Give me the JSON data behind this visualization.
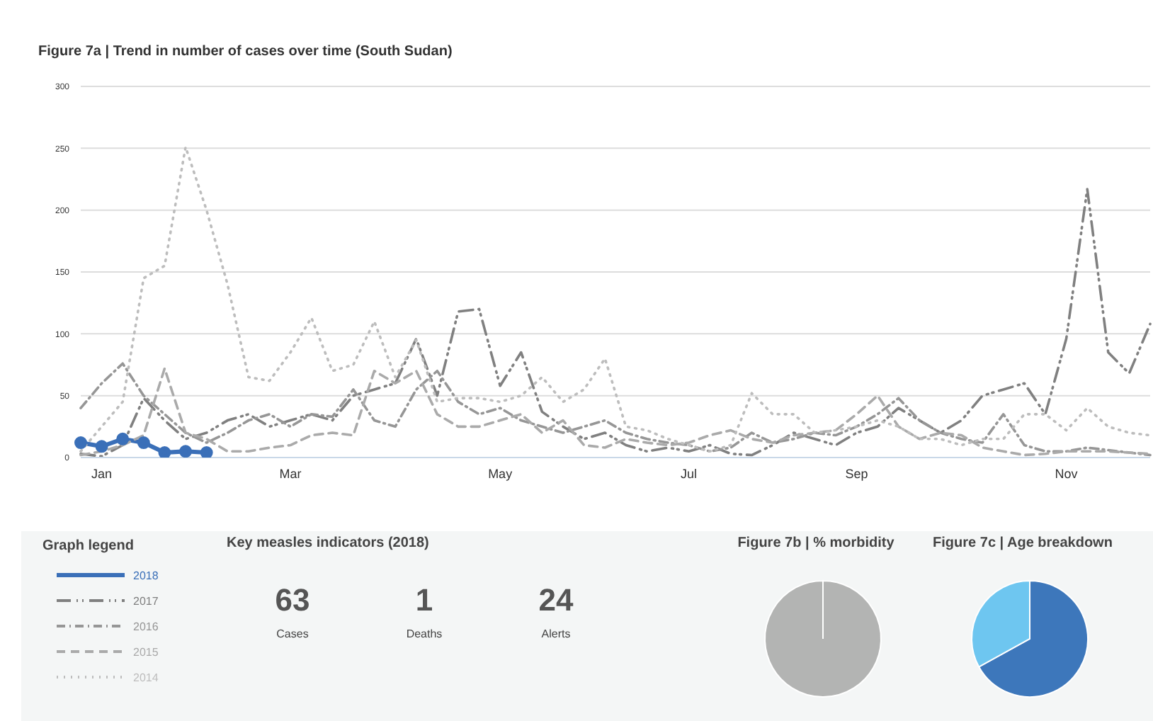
{
  "chart_data": [
    {
      "type": "line",
      "title": "Figure 7a | Trend in number of cases over time (South Sudan)",
      "legend_title": "Graph legend",
      "legend": "bottom",
      "grid": "y",
      "categories": [
        null,
        "Jan",
        null,
        null,
        null,
        null,
        null,
        null,
        null,
        null,
        "Mar",
        null,
        null,
        null,
        null,
        null,
        null,
        null,
        null,
        null,
        "May",
        null,
        null,
        null,
        null,
        null,
        null,
        null,
        null,
        "Jul",
        null,
        null,
        null,
        null,
        null,
        null,
        null,
        "Sep",
        null,
        null,
        null,
        null,
        null,
        null,
        null,
        null,
        null,
        "Nov",
        null,
        null,
        null,
        null
      ],
      "ylim": [
        0,
        300
      ],
      "yticks": [
        0,
        50,
        100,
        150,
        200,
        250,
        300
      ],
      "series": [
        {
          "name": "2018",
          "color": "#3a6fb8",
          "line_style": "solid",
          "marker": "circle",
          "values": [
            12,
            9,
            15,
            12,
            4,
            5,
            4,
            null,
            null,
            null,
            null,
            null,
            null,
            null,
            null,
            null,
            null,
            null,
            null,
            null,
            null,
            null,
            null,
            null,
            null,
            null,
            null,
            null,
            null,
            null,
            null,
            null,
            null,
            null,
            null,
            null,
            null,
            null,
            null,
            null,
            null,
            null,
            null,
            null,
            null,
            null,
            null,
            null,
            null,
            null,
            null,
            null
          ]
        },
        {
          "name": "2017",
          "color": "#808080",
          "line_style": "dashed",
          "marker": "none",
          "values": [
            3,
            1,
            10,
            48,
            30,
            15,
            20,
            30,
            35,
            25,
            30,
            35,
            30,
            50,
            55,
            60,
            96,
            50,
            118,
            120,
            58,
            85,
            37,
            25,
            15,
            20,
            10,
            5,
            8,
            5,
            10,
            3,
            2,
            10,
            20,
            15,
            10,
            20,
            25,
            40,
            30,
            20,
            30,
            50,
            55,
            60,
            35,
            96,
            217,
            85,
            68,
            108
          ]
        },
        {
          "name": "2016",
          "color": "#969696",
          "line_style": "dashed",
          "marker": "none",
          "values": [
            40,
            60,
            76,
            50,
            35,
            20,
            12,
            20,
            30,
            35,
            25,
            35,
            33,
            55,
            30,
            25,
            55,
            70,
            45,
            35,
            40,
            30,
            25,
            20,
            25,
            30,
            20,
            15,
            12,
            10,
            5,
            8,
            20,
            12,
            15,
            20,
            18,
            25,
            35,
            48,
            30,
            20,
            15,
            12,
            35,
            10,
            5,
            5,
            8,
            6,
            4,
            2
          ]
        },
        {
          "name": "2015",
          "color": "#aaaaaa",
          "line_style": "dashed",
          "marker": "none",
          "values": [
            2,
            5,
            10,
            18,
            72,
            20,
            15,
            5,
            5,
            8,
            10,
            18,
            20,
            18,
            70,
            60,
            70,
            35,
            25,
            25,
            30,
            35,
            20,
            30,
            10,
            8,
            15,
            12,
            10,
            12,
            18,
            22,
            15,
            12,
            18,
            20,
            22,
            35,
            50,
            25,
            15,
            20,
            18,
            8,
            5,
            2,
            3,
            5,
            5,
            5,
            4,
            3
          ]
        },
        {
          "name": "2014",
          "color": "#bdbdbd",
          "line_style": "dotted",
          "marker": "none",
          "values": [
            5,
            25,
            45,
            145,
            155,
            251,
            200,
            140,
            65,
            62,
            85,
            113,
            70,
            75,
            110,
            65,
            95,
            45,
            48,
            48,
            45,
            50,
            65,
            45,
            55,
            80,
            25,
            22,
            15,
            10,
            5,
            10,
            52,
            35,
            35,
            20,
            22,
            25,
            30,
            25,
            15,
            15,
            10,
            15,
            15,
            35,
            35,
            22,
            40,
            25,
            20,
            18
          ]
        }
      ]
    },
    {
      "type": "other",
      "title": "Key measles indicators (2018)",
      "categories": [
        "Cases",
        "Deaths",
        "Alerts"
      ],
      "values": [
        63,
        1,
        24
      ],
      "data_labels": true
    },
    {
      "type": "pie",
      "title": "Figure 7b | % morbidity",
      "categories": [
        null
      ],
      "values": [
        100
      ],
      "colors": [
        "#b3b4b3"
      ]
    },
    {
      "type": "pie",
      "title": "Figure 7c | Age breakdown",
      "categories": [
        null,
        null
      ],
      "values": [
        67,
        33
      ],
      "colors": [
        "#3d77bb",
        "#6ec6f0"
      ]
    }
  ]
}
